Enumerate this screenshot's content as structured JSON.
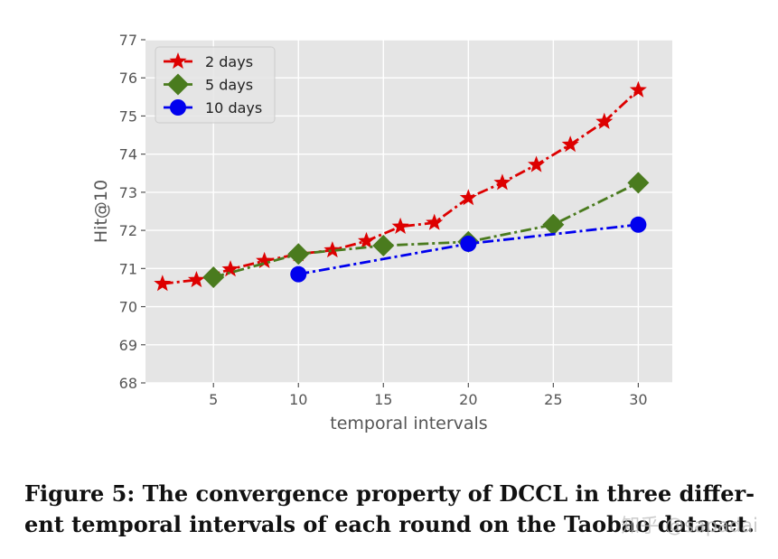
{
  "chart_data": {
    "type": "line",
    "title": "",
    "xlabel": "temporal intervals",
    "ylabel": "Hit@10",
    "xlim": [
      1,
      32
    ],
    "ylim": [
      68,
      77
    ],
    "xticks": [
      "5",
      "10",
      "15",
      "20",
      "25",
      "30"
    ],
    "yticks": [
      "68",
      "69",
      "70",
      "71",
      "72",
      "73",
      "74",
      "75",
      "76",
      "77"
    ],
    "grid": true,
    "legend_position": "upper-left",
    "series": [
      {
        "name": "2 days",
        "color": "#dd0000",
        "marker": "star",
        "linestyle": "dash-dot",
        "x": [
          2,
          4,
          6,
          8,
          10,
          12,
          14,
          16,
          18,
          20,
          22,
          24,
          26,
          28,
          30
        ],
        "y": [
          70.6,
          70.7,
          70.98,
          71.2,
          71.38,
          71.48,
          71.72,
          72.1,
          72.2,
          72.85,
          73.25,
          73.72,
          74.25,
          74.85,
          75.68
        ]
      },
      {
        "name": "5 days",
        "color": "#4a7b1e",
        "marker": "diamond",
        "linestyle": "dash-dot",
        "x": [
          5,
          10,
          15,
          20,
          25,
          30
        ],
        "y": [
          70.77,
          71.38,
          71.6,
          71.7,
          72.15,
          73.25
        ]
      },
      {
        "name": "10 days",
        "color": "#0000ee",
        "marker": "circle",
        "linestyle": "dash-dot",
        "x": [
          10,
          20,
          30
        ],
        "y": [
          70.85,
          71.65,
          72.15
        ]
      }
    ]
  },
  "caption": {
    "line1": "Figure 5: The convergence property of DCCL in three differ-",
    "line2": "ent temporal intervals of each round on the Taobao dataset."
  },
  "watermark": "知乎 @sapadai"
}
